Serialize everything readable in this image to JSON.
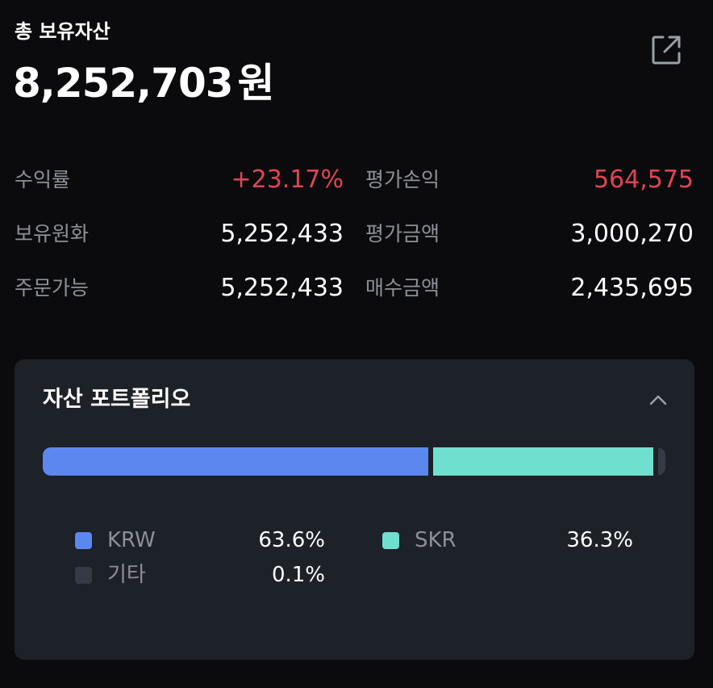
{
  "header": {
    "title": "총 보유자산",
    "total_amount": "8,252,703",
    "total_unit": "원"
  },
  "icons": {
    "export": "external-link-icon",
    "collapse": "chevron-up-icon"
  },
  "stats": {
    "yield": {
      "label": "수익률",
      "value": "+23.17%"
    },
    "eval_pnl": {
      "label": "평가손익",
      "value": "564,575"
    },
    "krw_holding": {
      "label": "보유원화",
      "value": "5,252,433"
    },
    "eval_amount": {
      "label": "평가금액",
      "value": "3,000,270"
    },
    "orderable": {
      "label": "주문가능",
      "value": "5,252,433"
    },
    "buy_amount": {
      "label": "매수금액",
      "value": "2,435,695"
    }
  },
  "portfolio": {
    "title": "자산 포트폴리오",
    "items": [
      {
        "label": "KRW",
        "percent_text": "63.6%",
        "percent": 63.6,
        "color": "#5b87ef"
      },
      {
        "label": "SKR",
        "percent_text": "36.3%",
        "percent": 36.3,
        "color": "#6fe0cf"
      },
      {
        "label": "기타",
        "percent_text": "0.1%",
        "percent": 0.1,
        "color": "#353a45"
      }
    ]
  },
  "colors": {
    "background": "#0b0b0d",
    "card": "#1d2128",
    "positive": "#e04556",
    "muted_text": "#8d9097"
  }
}
